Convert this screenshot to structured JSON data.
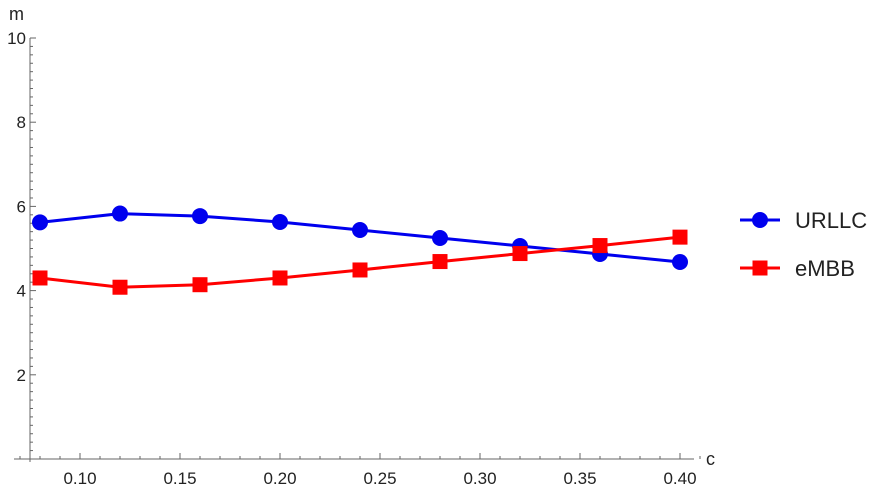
{
  "chart_data": {
    "type": "line",
    "title": "",
    "xlabel": "c",
    "ylabel": "m",
    "x": [
      0.08,
      0.12,
      0.16,
      0.2,
      0.24,
      0.28,
      0.32,
      0.36,
      0.4
    ],
    "xlim": [
      0.07,
      0.41
    ],
    "ylim": [
      0,
      10
    ],
    "xticks": [
      "0.10",
      "0.15",
      "0.20",
      "0.25",
      "0.30",
      "0.35",
      "0.40"
    ],
    "yticks": [
      "2",
      "4",
      "6",
      "8",
      "10"
    ],
    "grid": false,
    "legend_position": "right",
    "series": [
      {
        "name": "URLLC",
        "color": "#0000ee",
        "marker": "circle",
        "values": [
          5.62,
          5.83,
          5.77,
          5.63,
          5.44,
          5.25,
          5.06,
          4.87,
          4.68
        ]
      },
      {
        "name": "eMBB",
        "color": "#ff0000",
        "marker": "square",
        "values": [
          4.3,
          4.08,
          4.14,
          4.3,
          4.49,
          4.69,
          4.88,
          5.07,
          5.27
        ]
      }
    ]
  }
}
